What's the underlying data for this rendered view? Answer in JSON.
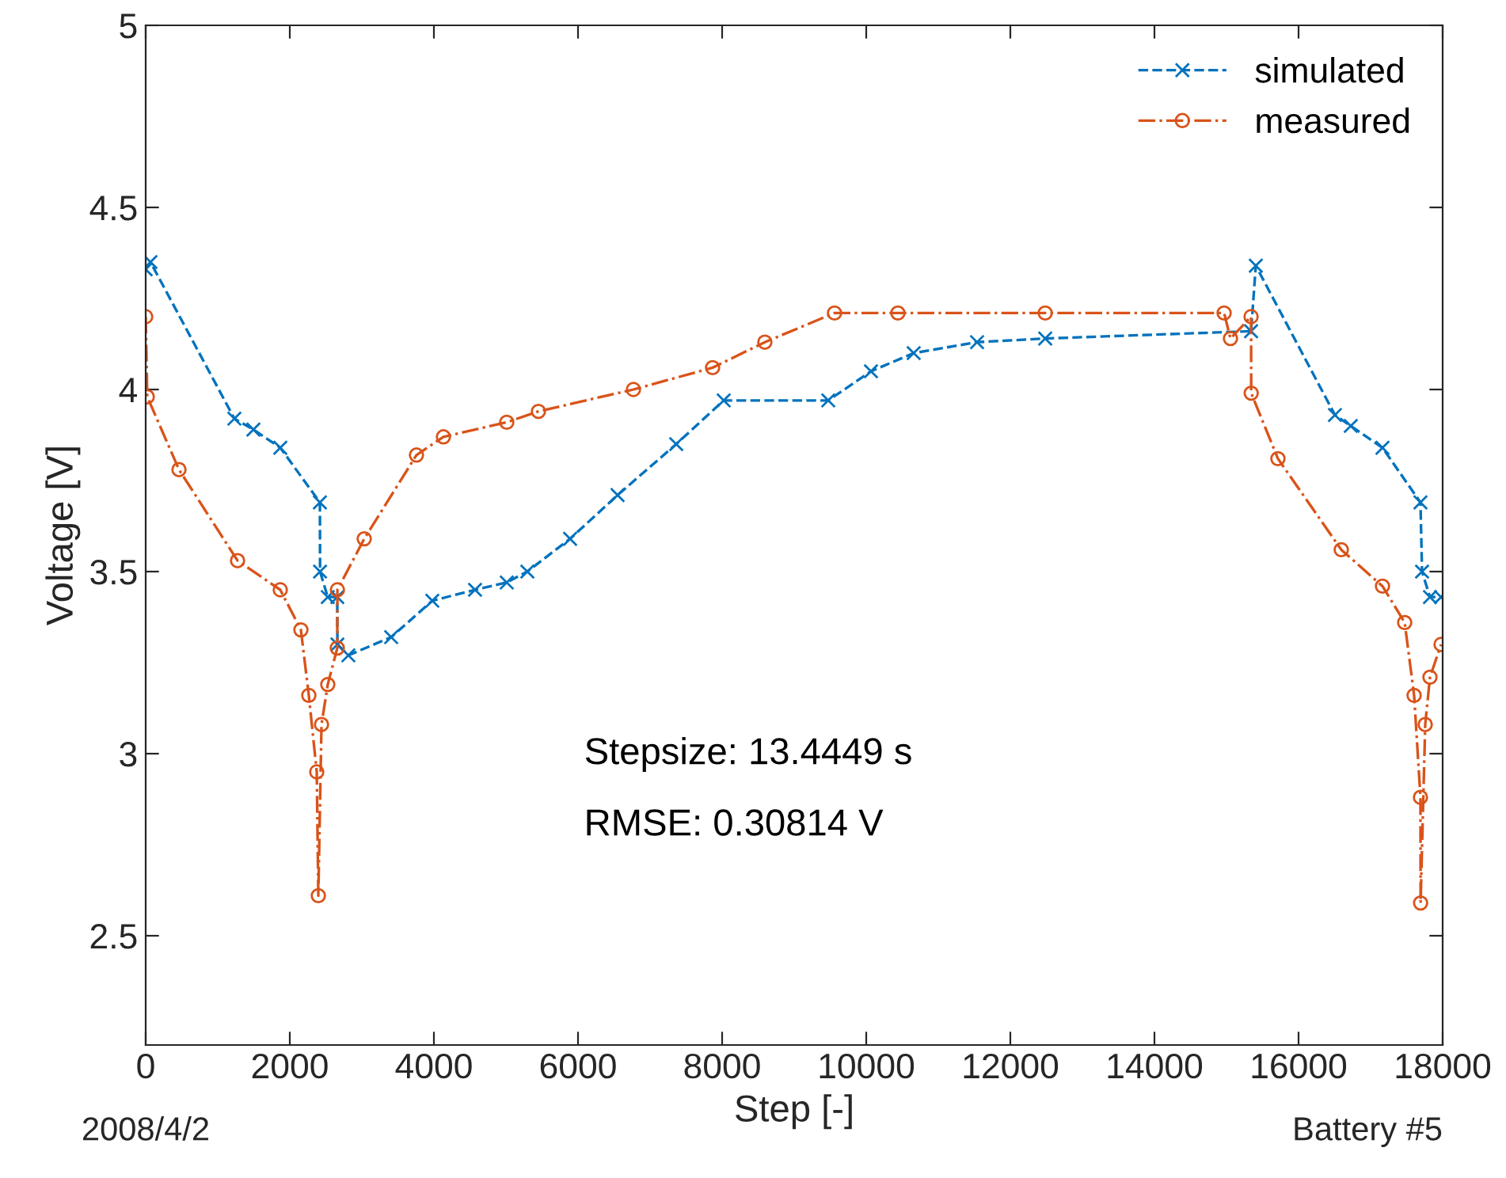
{
  "chart_data": {
    "type": "line",
    "xlabel": "Step [-]",
    "ylabel": "Voltage [V]",
    "xlim": [
      0,
      18000
    ],
    "xticks": [
      0,
      2000,
      4000,
      6000,
      8000,
      10000,
      12000,
      14000,
      16000,
      18000
    ],
    "ylim": [
      2.2,
      5
    ],
    "yticks": [
      2.5,
      3,
      3.5,
      4,
      4.5,
      5
    ],
    "grid": false,
    "legend": "top right",
    "annotations": [
      "Stepsize: 13.4449 s",
      "RMSE: 0.30814 V",
      "2008/4/2",
      "Battery #5"
    ],
    "series": [
      {
        "name": "simulated",
        "color": "#0072bd",
        "marker": "cross",
        "line_style": "dashed",
        "x": [
          0,
          66,
          1231,
          1495,
          1868,
          2418,
          2420,
          2527,
          2659,
          2661,
          2813,
          3407,
          3978,
          4571,
          5011,
          5297,
          5890,
          6549,
          7363,
          8022,
          9473,
          10066,
          10659,
          11538,
          12484,
          15341,
          15407,
          16505,
          16725,
          17165,
          17692,
          17714,
          17824,
          17978
        ],
        "values": [
          4.33,
          4.35,
          3.92,
          3.89,
          3.84,
          3.69,
          3.5,
          3.43,
          3.43,
          3.3,
          3.27,
          3.32,
          3.42,
          3.45,
          3.47,
          3.5,
          3.59,
          3.71,
          3.85,
          3.97,
          3.97,
          4.05,
          4.1,
          4.13,
          4.14,
          4.16,
          4.34,
          3.93,
          3.9,
          3.84,
          3.69,
          3.5,
          3.43,
          3.43
        ]
      },
      {
        "name": "measured",
        "color": "#d95319",
        "marker": "circle",
        "line_style": "dashdot",
        "x": [
          0,
          22,
          462,
          1275,
          1868,
          2154,
          2264,
          2374,
          2396,
          2440,
          2527,
          2659,
          2661,
          3033,
          3758,
          4132,
          5011,
          5451,
          6769,
          7868,
          8593,
          9560,
          10440,
          12484,
          14967,
          15055,
          15341,
          15343,
          15714,
          16593,
          17165,
          17473,
          17604,
          17692,
          17694,
          17758,
          17824,
          17978
        ],
        "values": [
          4.2,
          3.98,
          3.78,
          3.53,
          3.45,
          3.34,
          3.16,
          2.95,
          2.61,
          3.08,
          3.19,
          3.29,
          3.45,
          3.59,
          3.82,
          3.87,
          3.91,
          3.94,
          4.0,
          4.06,
          4.13,
          4.21,
          4.21,
          4.21,
          4.21,
          4.14,
          4.2,
          3.99,
          3.81,
          3.56,
          3.46,
          3.36,
          3.16,
          2.88,
          2.59,
          3.08,
          3.21,
          3.3
        ]
      }
    ]
  }
}
